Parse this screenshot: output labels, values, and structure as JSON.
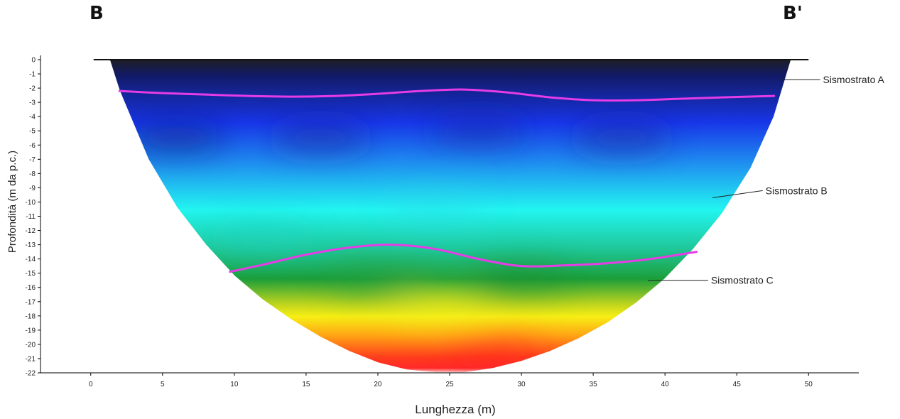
{
  "section": {
    "start_label": "B",
    "end_label": "B'"
  },
  "chart_data": {
    "type": "heatmap",
    "title": "",
    "xlabel": "Lunghezza (m)",
    "ylabel": "Profondità (m da p.c.)",
    "xlim": [
      -3.5,
      53.5
    ],
    "ylim": [
      -22,
      0
    ],
    "x_ticks": [
      0,
      5,
      10,
      15,
      20,
      25,
      30,
      35,
      40,
      45,
      50
    ],
    "y_ticks": [
      0,
      -1,
      -2,
      -3,
      -4,
      -5,
      -6,
      -7,
      -8,
      -9,
      -10,
      -11,
      -12,
      -13,
      -14,
      -15,
      -16,
      -17,
      -18,
      -19,
      -20,
      -21,
      -22
    ],
    "grid": false,
    "colormap": [
      "#1e1e26",
      "#121a66",
      "#1836e8",
      "#1f8ef0",
      "#22f5f0",
      "#1fc99c",
      "#1c9e3a",
      "#bdd41e",
      "#f7ee15",
      "#ffa514",
      "#ff3d1c",
      "#ff2a2a",
      "#ffe6e6"
    ],
    "section_outline": {
      "top_y": 0,
      "top_x_start": 0.2,
      "top_x_end": 50,
      "edge_points": [
        [
          1.3,
          0
        ],
        [
          2,
          -2.2
        ],
        [
          4,
          -7
        ],
        [
          6,
          -10.4
        ],
        [
          8,
          -13
        ],
        [
          10,
          -15.2
        ],
        [
          12,
          -16.9
        ],
        [
          14,
          -18.3
        ],
        [
          16,
          -19.5
        ],
        [
          18,
          -20.5
        ],
        [
          20,
          -21.3
        ],
        [
          22,
          -21.8
        ],
        [
          24,
          -22
        ],
        [
          26,
          -22
        ],
        [
          28,
          -21.7
        ],
        [
          30,
          -21.2
        ],
        [
          32,
          -20.5
        ],
        [
          34,
          -19.6
        ],
        [
          36,
          -18.5
        ],
        [
          38,
          -17.1
        ],
        [
          40,
          -15.4
        ],
        [
          42,
          -13.3
        ],
        [
          44,
          -10.8
        ],
        [
          46,
          -7.6
        ],
        [
          47.6,
          -4
        ],
        [
          48.8,
          0
        ]
      ]
    },
    "series": [
      {
        "name": "",
        "color": "#e63ce6",
        "x": [
          2,
          5,
          8,
          11,
          14,
          17,
          20,
          23,
          26,
          29,
          32,
          35,
          38,
          41,
          44,
          47.6
        ],
        "y": [
          -2.2,
          -2.35,
          -2.45,
          -2.55,
          -2.6,
          -2.55,
          -2.4,
          -2.2,
          -2.1,
          -2.3,
          -2.65,
          -2.85,
          -2.85,
          -2.75,
          -2.65,
          -2.55
        ]
      },
      {
        "name": "",
        "color": "#e63ce6",
        "x": [
          9.7,
          12,
          15,
          18,
          21,
          24,
          27,
          30,
          33,
          36,
          39,
          42.2
        ],
        "y": [
          -14.9,
          -14.4,
          -13.7,
          -13.2,
          -13,
          -13.3,
          -14,
          -14.5,
          -14.45,
          -14.3,
          -14,
          -13.5
        ]
      }
    ],
    "annotations": [
      {
        "text": "Sismostrato A",
        "x": 48,
        "y": -1.4,
        "label_x": 51,
        "label_y": -1.4
      },
      {
        "text": "Sismostrato B",
        "x": 43.3,
        "y": -9.7,
        "label_x": 47,
        "label_y": -9.2
      },
      {
        "text": "Sismostrato C",
        "x": 38.8,
        "y": -15.5,
        "label_x": 43.2,
        "label_y": -15.5
      }
    ]
  }
}
